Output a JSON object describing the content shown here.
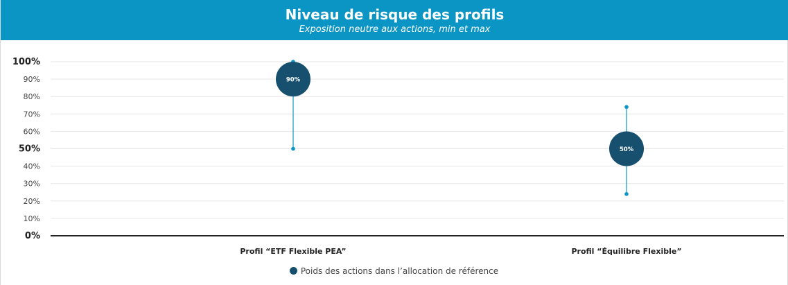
{
  "title": "Niveau de risque des profils",
  "subtitle": "Exposition neutre aux actions, min et max",
  "colors": {
    "header": "#0b95c4",
    "marker": "#16506e",
    "whisker": "#0b95c4",
    "grid": "#e6e6e6",
    "axis": "#222222"
  },
  "chart_data": {
    "type": "scatter",
    "categories": [
      "Profil “ETF Flexible PEA”",
      "Profil “Équilibre Flexible”"
    ],
    "ylim": [
      0,
      100
    ],
    "y_ticks": [
      "0%",
      "10%",
      "20%",
      "30%",
      "40%",
      "50%",
      "60%",
      "70%",
      "80%",
      "90%",
      "100%"
    ],
    "bold_ticks": [
      "0%",
      "50%",
      "100%"
    ],
    "series": [
      {
        "name": "Poids des actions dans l’allocation de référence",
        "values": [
          90,
          50
        ],
        "labels": [
          "90%",
          "50%"
        ],
        "min": [
          50,
          24
        ],
        "max": [
          100,
          74
        ]
      }
    ],
    "grid": true,
    "legend": "bottom-center"
  }
}
